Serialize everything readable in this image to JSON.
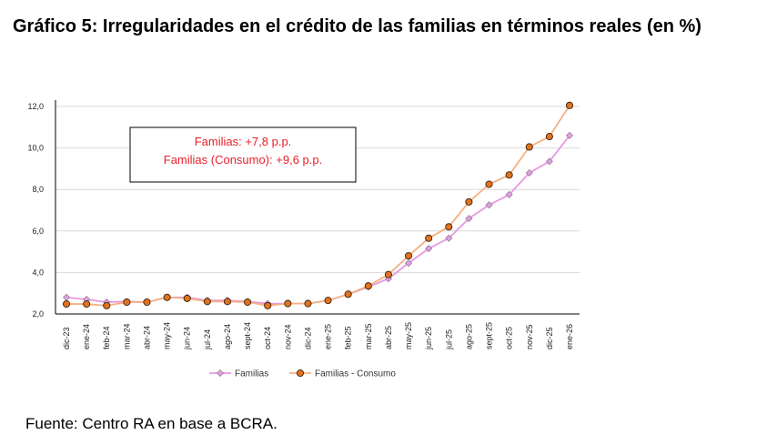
{
  "chart_data": {
    "type": "line",
    "title": "Gráfico 5: Irregularidades en el crédito de las familias en términos reales (en %)",
    "xlabel": "",
    "ylabel": "",
    "ylim": [
      2,
      12
    ],
    "yticks": [
      "2,0",
      "4,0",
      "6,0",
      "8,0",
      "10,0",
      "12,0"
    ],
    "ytick_values": [
      2,
      4,
      6,
      8,
      10,
      12
    ],
    "grid": true,
    "legend_position": "bottom",
    "categories": [
      "dic-23",
      "ene-24",
      "feb-24",
      "mar-24",
      "abr-24",
      "may-24",
      "jun-24",
      "jul-24",
      "ago-24",
      "sept-24",
      "oct-24",
      "nov-24",
      "dic-24",
      "ene-25",
      "feb-25",
      "mar-25",
      "abr-25",
      "may-25",
      "jun-25",
      "jul-25",
      "ago-25",
      "sept-25",
      "oct-25",
      "nov-25",
      "dic-25",
      "ene-26"
    ],
    "series": [
      {
        "name": "Familias",
        "color": "#e59ae0",
        "marker": "diamond",
        "values": [
          2.8,
          2.7,
          2.57,
          2.6,
          2.57,
          2.8,
          2.8,
          2.65,
          2.65,
          2.6,
          2.5,
          2.5,
          2.5,
          2.65,
          2.95,
          3.3,
          3.7,
          4.45,
          5.15,
          5.65,
          6.6,
          7.25,
          7.75,
          8.8,
          9.35,
          10.6
        ]
      },
      {
        "name": "Familias - Consumo",
        "color": "#f4b183",
        "marker": "circle",
        "values": [
          2.48,
          2.48,
          2.4,
          2.57,
          2.57,
          2.8,
          2.75,
          2.6,
          2.6,
          2.57,
          2.4,
          2.5,
          2.5,
          2.65,
          2.95,
          3.35,
          3.9,
          4.8,
          5.65,
          6.2,
          7.4,
          8.25,
          8.7,
          10.05,
          10.55,
          12.05
        ]
      }
    ],
    "annotations": [
      "Familias: +7,8 p.p.",
      "Familias (Consumo): +9,6 p.p."
    ]
  },
  "source": "Fuente: Centro RA en base a BCRA."
}
